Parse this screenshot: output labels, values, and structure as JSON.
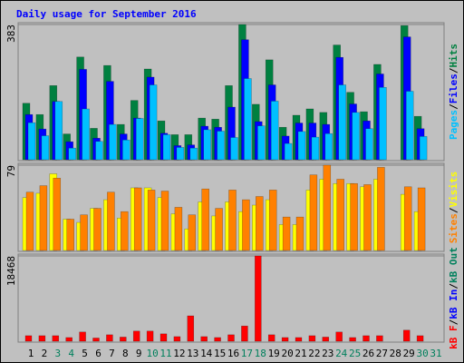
{
  "title": "Daily usage for September 2016",
  "categories": [
    "1",
    "2",
    "3",
    "4",
    "5",
    "6",
    "7",
    "8",
    "9",
    "10",
    "11",
    "12",
    "13",
    "14",
    "15",
    "16",
    "17",
    "18",
    "19",
    "20",
    "21",
    "22",
    "23",
    "24",
    "25",
    "26",
    "27",
    "28",
    "29",
    "30",
    "31"
  ],
  "category_colors": [
    "#000000",
    "#000000",
    "#00805c",
    "#00805c",
    "#000000",
    "#000000",
    "#000000",
    "#000000",
    "#000000",
    "#00805c",
    "#00805c",
    "#000000",
    "#000000",
    "#000000",
    "#000000",
    "#000000",
    "#00805c",
    "#00805c",
    "#000000",
    "#000000",
    "#000000",
    "#000000",
    "#000000",
    "#00805c",
    "#00805c",
    "#000000",
    "#000000",
    "#000000",
    "#000000",
    "#00805c",
    "#00805c"
  ],
  "chart_data": [
    {
      "type": "bar",
      "ylim": [
        0,
        383
      ],
      "yticks": [
        383
      ],
      "series": [
        {
          "name": "Hits",
          "color": "#008040",
          "values": [
            160,
            128,
            210,
            73,
            291,
            89,
            267,
            100,
            168,
            257,
            110,
            71,
            71,
            118,
            115,
            210,
            383,
            157,
            283,
            92,
            126,
            144,
            134,
            325,
            191,
            136,
            270,
            0,
            380,
            123,
            0
          ]
        },
        {
          "name": "Files",
          "color": "#0000ff",
          "values": [
            128,
            87,
            165,
            51,
            256,
            61,
            222,
            73,
            118,
            234,
            75,
            40,
            42,
            95,
            92,
            149,
            340,
            108,
            212,
            67,
            104,
            104,
            100,
            290,
            158,
            110,
            243,
            0,
            348,
            88,
            0
          ]
        },
        {
          "name": "Pages",
          "color": "#00c0ff",
          "values": [
            105,
            68,
            165,
            33,
            144,
            52,
            100,
            56,
            117,
            212,
            71,
            35,
            33,
            85,
            81,
            63,
            230,
            96,
            166,
            46,
            80,
            64,
            74,
            212,
            134,
            88,
            205,
            0,
            194,
            66,
            0
          ]
        }
      ]
    },
    {
      "type": "bar",
      "ylim": [
        0,
        79
      ],
      "yticks": [
        79
      ],
      "series": [
        {
          "name": "Visits",
          "color": "#ffff00",
          "values": [
            49,
            53,
            71,
            29,
            26,
            39,
            47,
            30,
            58,
            58,
            49,
            34,
            20,
            45,
            32,
            45,
            36,
            42,
            47,
            24,
            24,
            56,
            66,
            62,
            62,
            59,
            66,
            0,
            52,
            36,
            0
          ]
        },
        {
          "name": "Sites",
          "color": "#ff8000",
          "values": [
            54,
            60,
            67,
            29,
            33,
            39,
            54,
            36,
            58,
            56,
            55,
            40,
            33,
            57,
            39,
            56,
            47,
            50,
            56,
            31,
            31,
            70,
            79,
            66,
            62,
            61,
            77,
            0,
            59,
            58,
            0
          ]
        }
      ]
    },
    {
      "type": "bar",
      "ylim": [
        0,
        18468
      ],
      "yticks": [
        18468
      ],
      "series": [
        {
          "name": "kB F",
          "color": "#ff0000",
          "values": [
            1200,
            1200,
            1200,
            800,
            2000,
            700,
            1400,
            900,
            2200,
            2200,
            1600,
            1000,
            5500,
            1000,
            800,
            1400,
            3300,
            18468,
            1400,
            800,
            800,
            1200,
            900,
            2000,
            800,
            1200,
            1200,
            0,
            2400,
            1200,
            0
          ]
        }
      ],
      "legend_extra": [
        {
          "name": "kB In",
          "color": "#0000ff"
        },
        {
          "name": "kB Out",
          "color": "#00805c"
        }
      ]
    }
  ]
}
